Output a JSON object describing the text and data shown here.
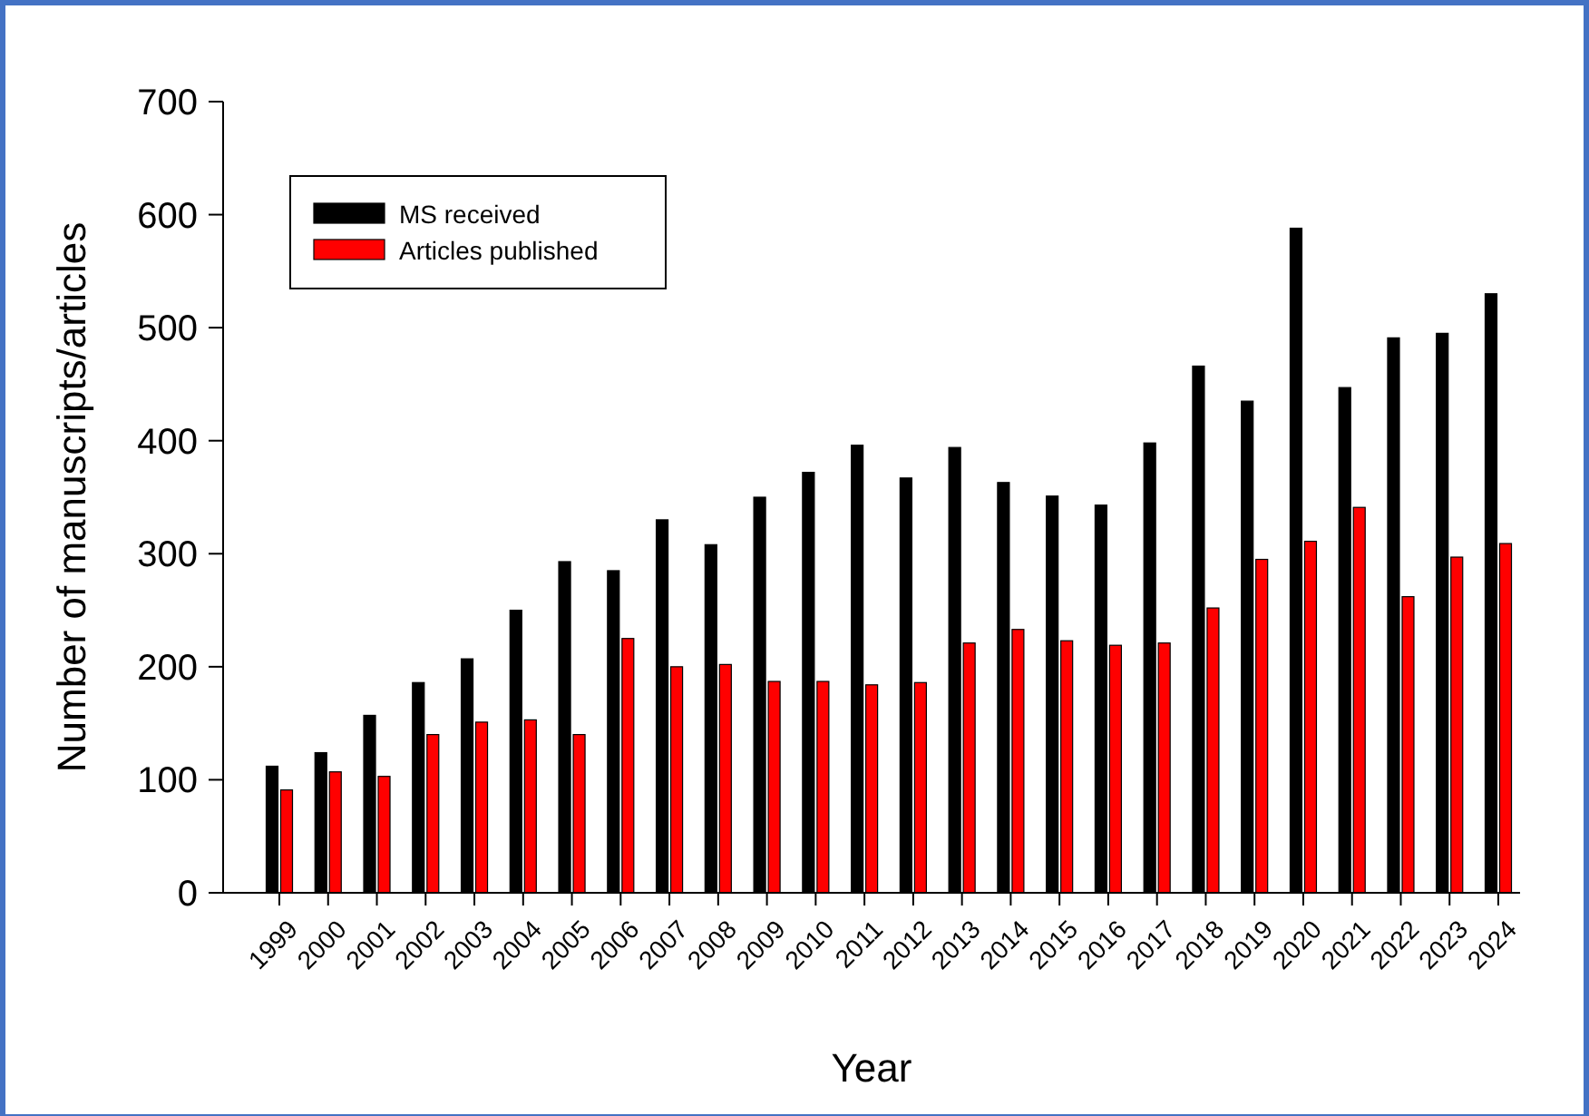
{
  "chart_data": {
    "type": "bar",
    "xlabel": "Year",
    "ylabel": "Number of manuscripts/articles",
    "categories": [
      "1999",
      "2000",
      "2001",
      "2002",
      "2003",
      "2004",
      "2005",
      "2006",
      "2007",
      "2008",
      "2009",
      "2010",
      "2011",
      "2012",
      "2013",
      "2014",
      "2015",
      "2016",
      "2017",
      "2018",
      "2019",
      "2020",
      "2021",
      "2022",
      "2023",
      "2024"
    ],
    "series": [
      {
        "name": "MS received",
        "color": "#000000",
        "values": [
          112,
          124,
          157,
          186,
          207,
          250,
          293,
          285,
          330,
          308,
          350,
          372,
          396,
          367,
          394,
          363,
          351,
          343,
          398,
          466,
          435,
          588,
          447,
          491,
          495,
          530
        ]
      },
      {
        "name": "Articles published",
        "color": "#ff0000",
        "values": [
          91,
          107,
          103,
          140,
          151,
          153,
          140,
          225,
          200,
          202,
          187,
          187,
          184,
          186,
          221,
          233,
          223,
          219,
          221,
          252,
          295,
          311,
          341,
          262,
          297,
          309
        ]
      }
    ],
    "ylim": [
      0,
      700
    ],
    "yticks": [
      0,
      100,
      200,
      300,
      400,
      500,
      600,
      700
    ],
    "grid": false,
    "legend": "top left"
  }
}
